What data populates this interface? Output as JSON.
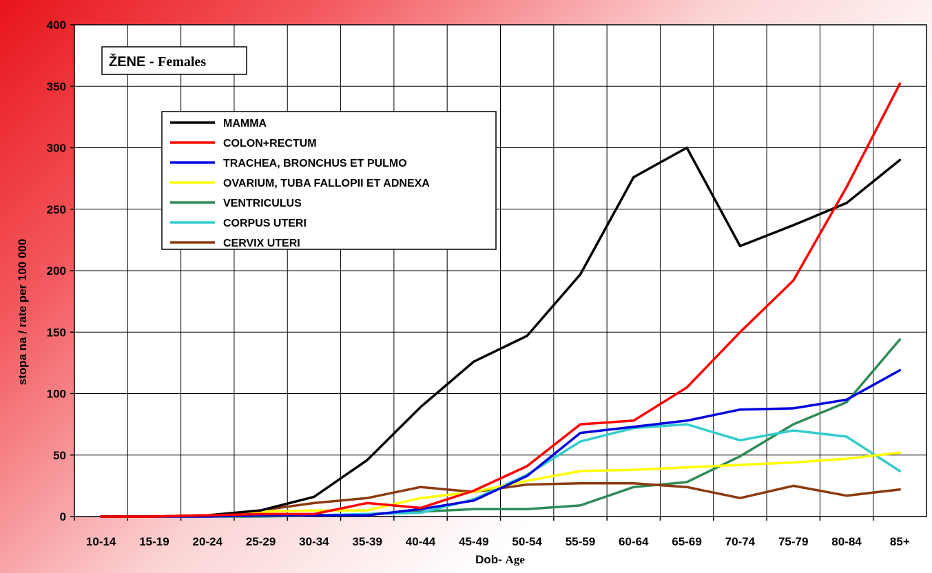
{
  "chart_data": {
    "type": "line",
    "title": "ŽENE",
    "subtitle": "Females",
    "xlabel": "Dob",
    "xlabel_sub": "Age",
    "ylabel": "stopa na / rate per 100 000",
    "ylim": [
      0,
      400
    ],
    "yticks": [
      0,
      50,
      100,
      150,
      200,
      250,
      300,
      350,
      400
    ],
    "grid": true,
    "legend_position": "top-left",
    "categories": [
      "10-14",
      "15-19",
      "20-24",
      "25-29",
      "30-34",
      "35-39",
      "40-44",
      "45-49",
      "50-54",
      "55-59",
      "60-64",
      "65-69",
      "70-74",
      "75-79",
      "80-84",
      "85+"
    ],
    "series": [
      {
        "name": "MAMMA",
        "color": "#000000",
        "values": [
          0,
          0,
          1,
          5,
          16,
          46,
          89,
          126,
          147,
          197,
          276,
          300,
          220,
          237,
          255,
          290
        ]
      },
      {
        "name": "COLON+RECTUM",
        "color": "#ff0000",
        "values": [
          0,
          0,
          1,
          2,
          2,
          11,
          7,
          21,
          41,
          75,
          78,
          105,
          150,
          192,
          268,
          352
        ]
      },
      {
        "name": "TRACHEA, BRONCHUS ET PULMO",
        "color": "#0000dd",
        "values": [
          0,
          0,
          0,
          1,
          1,
          1,
          6,
          13,
          33,
          68,
          73,
          78,
          87,
          88,
          95,
          119
        ]
      },
      {
        "name": "OVARIUM, TUBA FALLOPII ET ADNEXA",
        "color": "#ffff00",
        "values": [
          0,
          0,
          1,
          4,
          5,
          5,
          15,
          20,
          29,
          37,
          38,
          40,
          42,
          44,
          47,
          52
        ]
      },
      {
        "name": "VENTRICULUS",
        "color": "#2e8b57",
        "values": [
          0,
          0,
          0,
          0,
          1,
          2,
          4,
          6,
          6,
          9,
          24,
          28,
          49,
          75,
          93,
          144
        ]
      },
      {
        "name": "CORPUS UTERI",
        "color": "#33cccc",
        "values": [
          0,
          0,
          0,
          1,
          1,
          2,
          3,
          14,
          34,
          61,
          72,
          75,
          62,
          70,
          65,
          37
        ]
      },
      {
        "name": "CERVIX UTERI",
        "color": "#8b3a0f",
        "values": [
          0,
          0,
          1,
          5,
          11,
          15,
          24,
          20,
          26,
          27,
          27,
          24,
          15,
          25,
          17,
          22
        ]
      }
    ]
  }
}
